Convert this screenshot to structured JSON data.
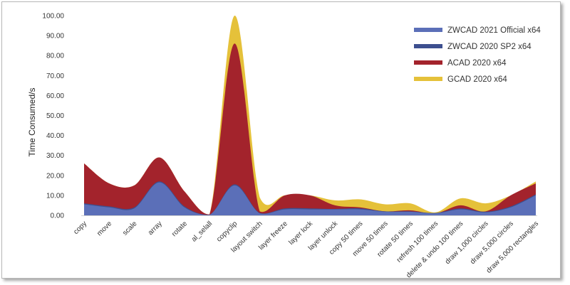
{
  "chart_data": {
    "type": "area",
    "title": "",
    "xlabel": "",
    "ylabel": "Time Consumed/s",
    "ylim": [
      0,
      100
    ],
    "yticks": [
      "0.00",
      "10.00",
      "20.00",
      "30.00",
      "40.00",
      "50.00",
      "60.00",
      "70.00",
      "80.00",
      "90.00",
      "100.00"
    ],
    "legend_position": "top-right",
    "grid": false,
    "categories": [
      "copy",
      "move",
      "scale",
      "array",
      "rotate",
      "al_selall",
      "copyclip",
      "layout switch",
      "layer freeze",
      "layer lock",
      "layer unlock",
      "copy 50 times",
      "move 50 times",
      "rotate 50 times",
      "refresh 100 times",
      "delete & undo 100 times",
      "draw 1,000 circles",
      "draw 5,000 circles",
      "draw 5,000 rectangles"
    ],
    "series": [
      {
        "name": "ZWCAD 2021 Official x64",
        "color": "#5b6fb8",
        "values": [
          5.5,
          4,
          3.5,
          16.5,
          4,
          0.2,
          15,
          1,
          3,
          3,
          3,
          3,
          1.8,
          1.8,
          1,
          3,
          1.5,
          4,
          10
        ]
      },
      {
        "name": "ZWCAD 2020 SP2 x64",
        "color": "#3d4f8f",
        "values": [
          6,
          4.5,
          4,
          17,
          4.5,
          0.3,
          15.5,
          1.2,
          3.5,
          3.5,
          3.2,
          3.5,
          2,
          2,
          1.2,
          3.5,
          1.8,
          4.5,
          10.5
        ]
      },
      {
        "name": "ACAD 2020 x64",
        "color": "#a3232c",
        "values": [
          26,
          16,
          15,
          29,
          12,
          0.5,
          86,
          2,
          10,
          10,
          5,
          4,
          2,
          2.5,
          1,
          5,
          2,
          10,
          16
        ]
      },
      {
        "name": "GCAD 2020 x64",
        "color": "#e5c13a",
        "values": [
          26,
          16,
          15,
          29,
          12,
          0.5,
          100,
          9,
          10,
          10,
          7.5,
          8,
          5.5,
          6,
          1.5,
          8.5,
          6,
          10,
          17
        ]
      }
    ]
  }
}
